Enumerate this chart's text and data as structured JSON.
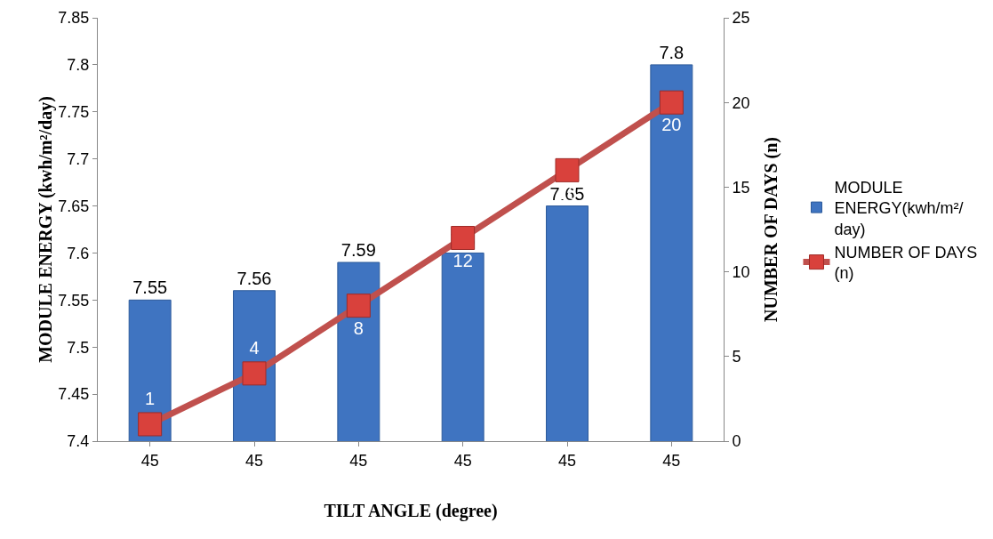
{
  "chart_data": {
    "type": "bar",
    "categories": [
      "45",
      "45",
      "45",
      "45",
      "45",
      "45"
    ],
    "xlabel": "TILT ANGLE (degree)",
    "ylabel": "MODULE ENERGY (kwh/m²/day)",
    "y2label": "NUMBER OF DAYS (n)",
    "series": [
      {
        "name": "MODULE ENERGY(kwh/m²/day)",
        "color": "#3f74c1",
        "values": [
          7.55,
          7.56,
          7.59,
          7.6,
          7.65,
          7.8
        ]
      },
      {
        "name": "NUMBER OF DAYS (n)",
        "type": "line",
        "axis": "y2",
        "color": "#c0504d",
        "marker": "square",
        "values": [
          1,
          4,
          8,
          12,
          16,
          20
        ]
      }
    ],
    "ylim": [
      7.4,
      7.85
    ],
    "yticks": [
      7.4,
      7.45,
      7.5,
      7.55,
      7.6,
      7.65,
      7.7,
      7.75,
      7.8,
      7.85
    ],
    "y2lim": [
      0,
      25
    ],
    "y2ticks": [
      0,
      5,
      10,
      15,
      20,
      25
    ],
    "data_labels": true,
    "grid": false,
    "legend": "right"
  }
}
